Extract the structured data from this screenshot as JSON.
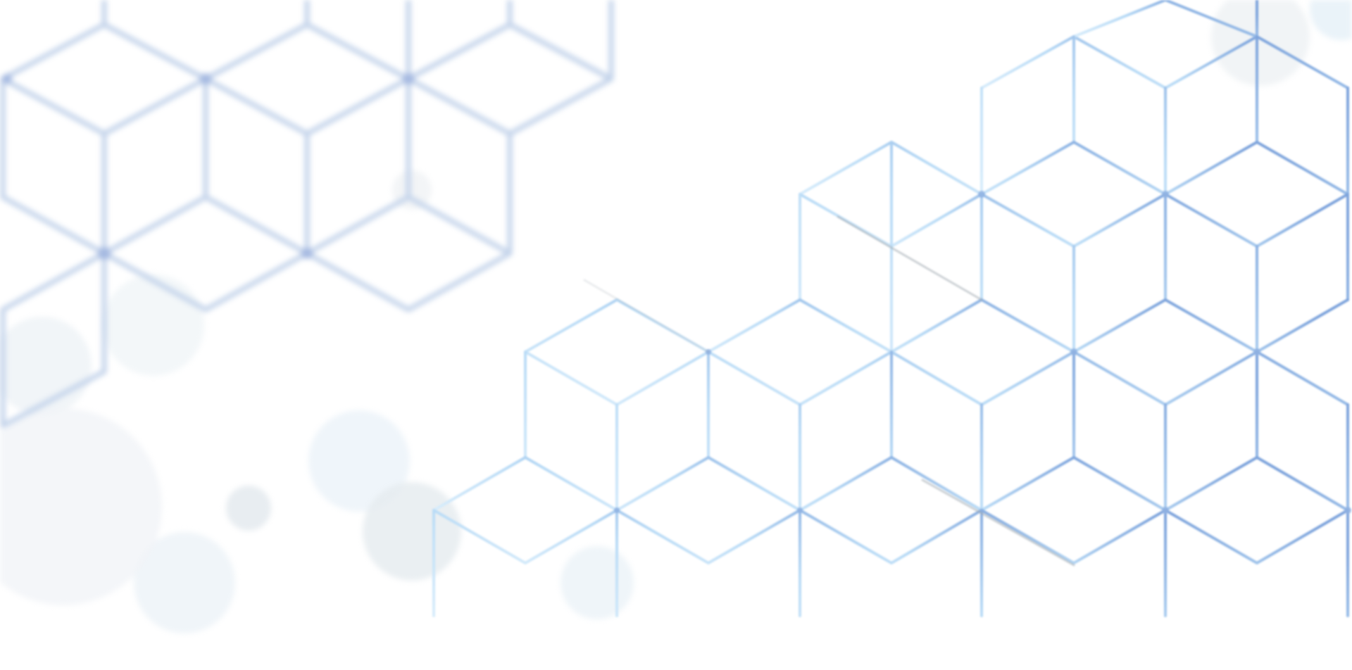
{
  "background": {
    "base_color": "#ffffff",
    "pattern": "isometric-cube-lattice",
    "line_color_light": "#cfe6fb",
    "line_color_mid": "#9fc2ea",
    "line_color_dark": "#6f97d4",
    "accent_shadow_color": "#9aa3ad",
    "bokeh_color": "#e9f2f8"
  }
}
